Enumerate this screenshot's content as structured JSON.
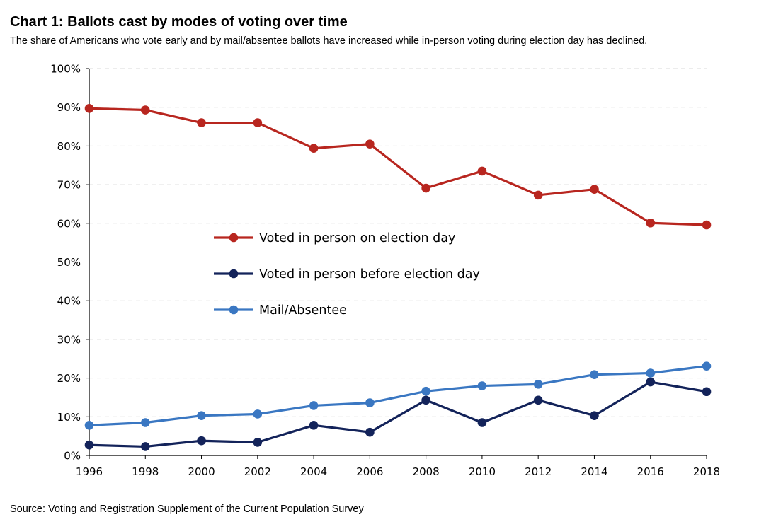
{
  "header": {
    "title": "Chart 1: Ballots cast by modes of voting over time",
    "subtitle": "The share of Americans who vote early and by mail/absentee ballots have increased while in-person voting during election day has declined."
  },
  "footer": {
    "source": "Source: Voting and Registration Supplement of the Current Population Survey"
  },
  "chart_data": {
    "type": "line",
    "title": "Chart 1: Ballots cast by modes of voting over time",
    "subtitle": "The share of Americans who vote early and by mail/absentee ballots have increased while in-person voting during election day has declined.",
    "xlabel": "",
    "ylabel": "",
    "x": [
      1996,
      1998,
      2000,
      2002,
      2004,
      2006,
      2008,
      2010,
      2012,
      2014,
      2016,
      2018
    ],
    "x_tick_labels": [
      "1996",
      "1998",
      "2000",
      "2002",
      "2004",
      "2006",
      "2008",
      "2010",
      "2012",
      "2014",
      "2016",
      "2018"
    ],
    "ylim": [
      0,
      100
    ],
    "y_ticks": [
      0,
      10,
      20,
      30,
      40,
      50,
      60,
      70,
      80,
      90,
      100
    ],
    "y_tick_labels": [
      "0%",
      "10%",
      "20%",
      "30%",
      "40%",
      "50%",
      "60%",
      "70%",
      "80%",
      "90%",
      "100%"
    ],
    "grid": "horizontal dashed",
    "legend_position": "center",
    "series": [
      {
        "name": "Voted in person on election day",
        "color": "#b8261f",
        "values": [
          89.7,
          89.3,
          86.0,
          86.0,
          79.4,
          80.5,
          69.1,
          73.5,
          67.3,
          68.8,
          60.1,
          59.6
        ]
      },
      {
        "name": "Voted in person before election day",
        "color": "#13235a",
        "values": [
          2.7,
          2.3,
          3.8,
          3.4,
          7.8,
          6.0,
          14.3,
          8.5,
          14.3,
          10.3,
          19.0,
          16.5
        ]
      },
      {
        "name": "Mail/Absentee",
        "color": "#3a77c2",
        "values": [
          7.8,
          8.5,
          10.3,
          10.7,
          12.9,
          13.6,
          16.6,
          18.0,
          18.4,
          20.9,
          21.3,
          23.1
        ]
      }
    ]
  }
}
